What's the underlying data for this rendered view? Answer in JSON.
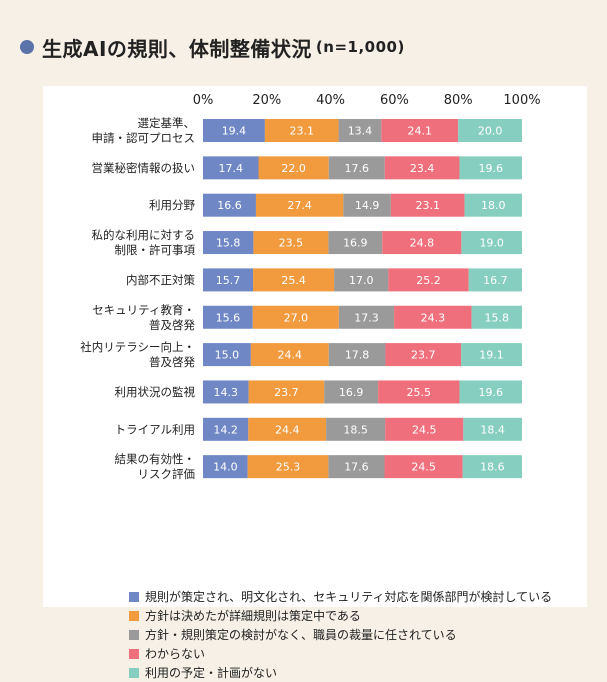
{
  "title": "生成AIの規則、体制整備状況",
  "title_note": "(n=1,000)",
  "chart_data": {
    "type": "bar",
    "orientation": "horizontal",
    "stacked": true,
    "xlim": [
      0,
      100
    ],
    "xticks": [
      "0%",
      "20%",
      "40%",
      "60%",
      "80%",
      "100%"
    ],
    "categories": [
      [
        "選定基準、",
        "申請・認可プロセス"
      ],
      [
        "営業秘密情報の扱い"
      ],
      [
        "利用分野"
      ],
      [
        "私的な利用に対する",
        "制限・許可事項"
      ],
      [
        "内部不正対策"
      ],
      [
        "セキュリティ教育・",
        "普及啓発"
      ],
      [
        "社内リテラシー向上・",
        "普及啓発"
      ],
      [
        "利用状況の監視"
      ],
      [
        "トライアル利用"
      ],
      [
        "結果の有効性・",
        "リスク評価"
      ]
    ],
    "series": [
      {
        "name": "規則が策定され、明文化され、セキュリティ対応を関係部門が検討している",
        "color": "#6f87c4",
        "values": [
          19.4,
          17.4,
          16.6,
          15.8,
          15.7,
          15.6,
          15.0,
          14.3,
          14.2,
          14.0
        ]
      },
      {
        "name": "方針は決めたが詳細規則は策定中である",
        "color": "#f19a3e",
        "values": [
          23.1,
          22.0,
          27.4,
          23.5,
          25.4,
          27.0,
          24.4,
          23.7,
          24.4,
          25.3
        ]
      },
      {
        "name": "方針・規則策定の検討がなく、職員の裁量に任されている",
        "color": "#9a9a9a",
        "values": [
          13.4,
          17.6,
          14.9,
          16.9,
          17.0,
          17.3,
          17.8,
          16.9,
          18.5,
          17.6
        ]
      },
      {
        "name": "わからない",
        "color": "#ef6f7c",
        "values": [
          24.1,
          23.4,
          23.1,
          24.8,
          25.2,
          24.3,
          23.7,
          25.5,
          24.5,
          24.5
        ]
      },
      {
        "name": "利用の予定・計画がない",
        "color": "#86cfc0",
        "values": [
          20.0,
          19.6,
          18.0,
          19.0,
          16.7,
          15.8,
          19.1,
          19.6,
          18.4,
          18.6
        ]
      }
    ],
    "value_labels": [
      [
        "19.4",
        "17.4",
        "16.6",
        "15.8",
        "15.7",
        "15.6",
        "15.0",
        "14.3",
        "14.2",
        "14.0"
      ],
      [
        "23.1",
        "22.0",
        "27.4",
        "23.5",
        "25.4",
        "27.0",
        "24.4",
        "23.7",
        "24.4",
        "25.3"
      ],
      [
        "13.4",
        "17.6",
        "14.9",
        "16.9",
        "17.0",
        "17.3",
        "17.8",
        "16.9",
        "18.5",
        "17.6"
      ],
      [
        "24.1",
        "23.4",
        "23.1",
        "24.8",
        "25.2",
        "24.3",
        "23.7",
        "25.5",
        "24.5",
        "24.5"
      ],
      [
        "20.0",
        "19.6",
        "18.0",
        "19.0",
        "16.7",
        "15.8",
        "19.1",
        "19.6",
        "18.4",
        "18.6"
      ]
    ],
    "legend_position": "bottom"
  }
}
